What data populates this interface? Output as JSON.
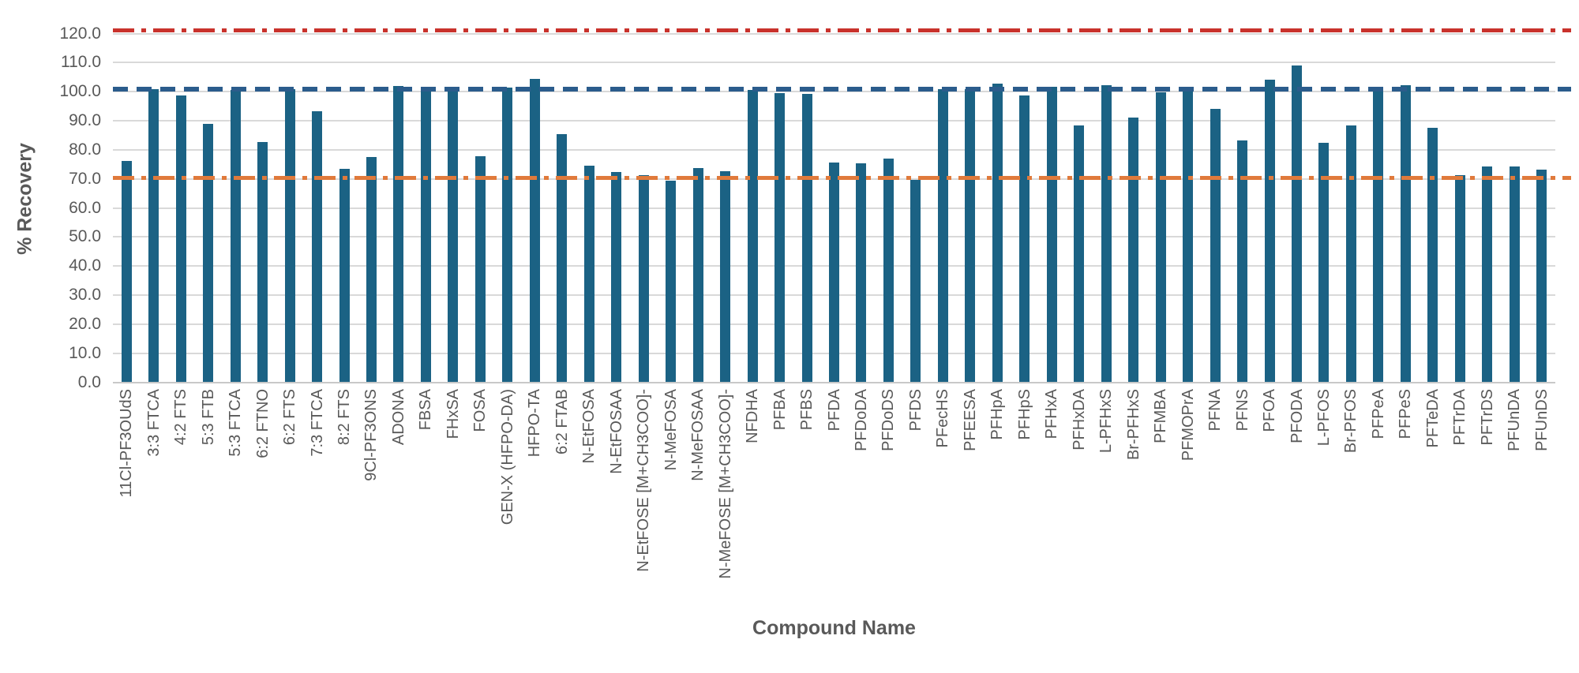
{
  "chart_data": {
    "type": "bar",
    "title": "",
    "xlabel": "Compound Name",
    "ylabel": "% Recovery",
    "ylim": [
      0,
      125
    ],
    "grid": true,
    "legend": false,
    "bar_color": "#1B6284",
    "grid_color": "#D9D9D9",
    "text_color": "#595959",
    "ytick_labels": [
      "0.0",
      "10.0",
      "20.0",
      "30.0",
      "40.0",
      "50.0",
      "60.0",
      "70.0",
      "80.0",
      "90.0",
      "100.0",
      "110.0",
      "120.0"
    ],
    "categories": [
      "11Cl-PF3OUdS",
      "3:3 FTCA",
      "4:2 FTS",
      "5:3 FTB",
      "5:3 FTCA",
      "6:2 FTNO",
      "6:2 FTS",
      "7:3 FTCA",
      "8:2 FTS",
      "9Cl-PF3ONS",
      "ADONA",
      "FBSA",
      "FHxSA",
      "FOSA",
      "GEN-X (HFPO-DA)",
      "HFPO-TA",
      "6:2 FTAB",
      "N-EtFOSA",
      "N-EtFOSAA",
      "N-EtFOSE [M+CH3COO]-",
      "N-MeFOSA",
      "N-MeFOSAA",
      "N-MeFOSE [M+CH3COO]-",
      "NFDHA",
      "PFBA",
      "PFBS",
      "PFDA",
      "PFDoDA",
      "PFDoDS",
      "PFDS",
      "PFecHS",
      "PFEESA",
      "PFHpA",
      "PFHpS",
      "PFHxA",
      "PFHxDA",
      "L-PFHxS",
      "Br-PFHxS",
      "PFMBA",
      "PFMOPrA",
      "PFNA",
      "PFNS",
      "PFOA",
      "PFODA",
      "L-PFOS",
      "Br-PFOS",
      "PFPeA",
      "PFPeS",
      "PFTeDA",
      "PFTrDA",
      "PFTrDS",
      "PFUnDA",
      "PFUnDS"
    ],
    "values": [
      76.3,
      100.8,
      98.8,
      89.0,
      100.5,
      82.6,
      100.9,
      93.4,
      73.5,
      77.4,
      102.0,
      100.3,
      101.6,
      77.9,
      101.3,
      104.3,
      85.4,
      74.6,
      72.4,
      71.2,
      69.4,
      73.7,
      72.6,
      100.6,
      99.6,
      99.2,
      75.6,
      75.4,
      76.9,
      69.6,
      100.8,
      101.0,
      102.8,
      98.6,
      101.8,
      88.4,
      102.2,
      91.0,
      99.8,
      100.5,
      94.2,
      83.3,
      104.1,
      109.0,
      82.5,
      88.4,
      101.6,
      102.3,
      87.7,
      71.4,
      74.3,
      74.3,
      73.2
    ],
    "reference_lines": [
      {
        "name": "upper-recovery-limit",
        "value": 121.0,
        "color": "#C9322C",
        "style": "dash-dot"
      },
      {
        "name": "mean-recovery",
        "value": 101.0,
        "color": "#2B5C8C",
        "style": "dash"
      },
      {
        "name": "lower-recovery-limit",
        "value": 70.4,
        "color": "#E07A3B",
        "style": "dash-dot"
      }
    ]
  }
}
